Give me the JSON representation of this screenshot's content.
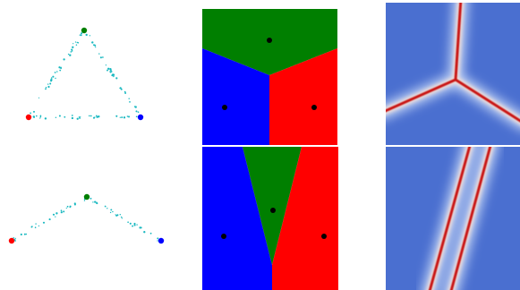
{
  "colors": {
    "green": "#007f00",
    "blue": "#0000ff",
    "red": "#ff0000",
    "cyan": "#18b8c0",
    "black": "#000000",
    "heat_bg": "#4a6fd0",
    "heat_line": "#c81818"
  },
  "panels": {
    "row1": {
      "scatter": "triangle",
      "voronoi": "three-way-split",
      "heatmap": "y-junction"
    },
    "row2": {
      "scatter": "chevron",
      "voronoi": "wedge-split",
      "heatmap": "parallel-diagonals"
    }
  }
}
